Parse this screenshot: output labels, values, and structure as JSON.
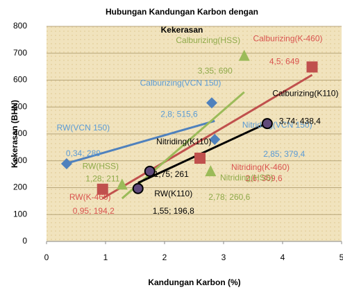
{
  "chart_data": {
    "type": "scatter",
    "title": "Hubungan Kandungan Karbon dengan Kekerasan",
    "xlabel": "Kandungan Karbon (%)",
    "ylabel": "Kekerasan (BHN)",
    "xlim": [
      0,
      5
    ],
    "ylim": [
      0,
      800
    ],
    "xticks": [
      0,
      1,
      2,
      3,
      4,
      5
    ],
    "yticks": [
      0,
      100,
      200,
      300,
      400,
      500,
      600,
      700,
      800
    ],
    "grid": true,
    "trendline": "linear",
    "series": [
      {
        "marker": "diamond",
        "color": "#4f81bd",
        "label_color": "#5b9bd5",
        "x": [
          0.34,
          2.85,
          2.8
        ],
        "values": [
          289,
          379.4,
          515.6
        ],
        "labels": [
          "RW(VCN 150)",
          "Nitriding(VCN 150)",
          "Calburizing(VCN 150)"
        ],
        "value_labels": [
          "0,34; 289",
          "2,85; 379,4",
          "2,8; 515,6"
        ]
      },
      {
        "marker": "square",
        "color": "#c0504d",
        "label_color": "#d9534f",
        "x": [
          0.95,
          2.6,
          4.5
        ],
        "values": [
          194.2,
          309.6,
          649
        ],
        "labels": [
          "RW(K-460)",
          "Nitriding(K-460)",
          "Calburizing(K-460)"
        ],
        "value_labels": [
          "0,95; 194,2",
          "2,6; 309,6",
          "4,5; 649"
        ]
      },
      {
        "marker": "triangle",
        "color": "#9bbb59",
        "label_color": "#8faa4a",
        "x": [
          1.28,
          2.78,
          3.35
        ],
        "values": [
          211,
          260.6,
          690
        ],
        "labels": [
          "RW(HSS)",
          "Nitriding(HSS)",
          "Calburizing(HSS)"
        ],
        "value_labels": [
          "1,28; 211",
          "2,78; 260,6",
          "3,35; 690"
        ]
      },
      {
        "marker": "circle",
        "color": "#000000",
        "label_color": "#000000",
        "x": [
          1.55,
          1.75,
          3.74
        ],
        "values": [
          196.8,
          261,
          438.4
        ],
        "labels": [
          "RW(K110)",
          "Nitriding(K110)",
          "Calburizing(K110)"
        ],
        "value_labels": [
          "1,55; 196,8",
          "1,75; 261",
          "3,74; 438,4"
        ]
      }
    ]
  }
}
